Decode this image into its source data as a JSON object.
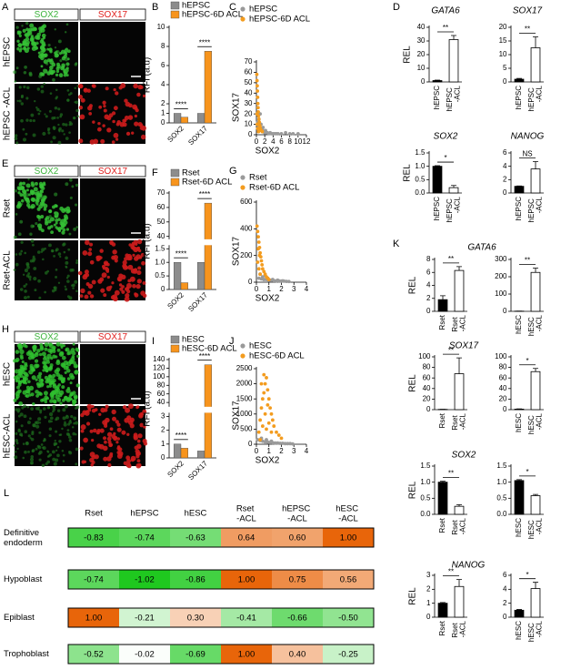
{
  "microscopy": [
    {
      "panel": "A",
      "columns": [
        "SOX2",
        "SOX17"
      ],
      "column_colors": [
        "#3cb43c",
        "#e0201e"
      ],
      "rows": [
        "hEPSC",
        "hEPSC -ACL"
      ]
    },
    {
      "panel": "E",
      "columns": [
        "SOX2",
        "SOX17"
      ],
      "column_colors": [
        "#3cb43c",
        "#e0201e"
      ],
      "rows": [
        "Rset",
        "Rset-ACL"
      ]
    },
    {
      "panel": "H",
      "columns": [
        "SOX2",
        "SOX17"
      ],
      "column_colors": [
        "#3cb43c",
        "#e0201e"
      ],
      "rows": [
        "hESC",
        "hESC-ACL"
      ]
    }
  ],
  "chart_data": [
    {
      "type": "bar",
      "panel": "B",
      "ylabel": "RFI (a.u)",
      "categories": [
        "SOX2",
        "SOX17"
      ],
      "series": [
        {
          "name": "hEPSC",
          "color": "#8c8c8c",
          "values": [
            1.0,
            1.0
          ]
        },
        {
          "name": "hEPSC-6D ACL",
          "color": "#f7941d",
          "values": [
            0.6,
            7.5
          ]
        }
      ],
      "annotations": [
        "****",
        "****"
      ],
      "ylim": [
        0,
        10
      ],
      "yticks": [
        0,
        1,
        2,
        4,
        6,
        8,
        10
      ]
    },
    {
      "type": "scatter",
      "panel": "C",
      "xlabel": "SOX2",
      "ylabel": "SOX17",
      "series": [
        {
          "name": "hEPSC",
          "color": "#9a9a9a",
          "x": [
            0.3,
            0.5,
            0.8,
            1.0,
            1.2,
            1.5,
            1.8,
            2.0,
            2.3,
            2.6,
            3.0,
            3.3,
            3.6,
            4.0,
            4.4,
            4.8,
            5.2,
            6.0,
            7.0,
            8.0,
            8.8,
            10.0,
            0.6,
            1.1,
            1.6,
            2.2,
            0.9,
            1.4
          ],
          "values": [
            12,
            8,
            6,
            5,
            4,
            3,
            3,
            2,
            2,
            2,
            1,
            2,
            1,
            1,
            1,
            1,
            1,
            1,
            2,
            1,
            1,
            1,
            15,
            10,
            7,
            4,
            20,
            5
          ]
        },
        {
          "name": "hEPSC-6D ACL",
          "color": "#f39c1f",
          "x": [
            0.1,
            0.15,
            0.2,
            0.25,
            0.3,
            0.35,
            0.4,
            0.45,
            0.5,
            0.6,
            0.7,
            0.8,
            0.9,
            1.0,
            1.2,
            1.4,
            0.2,
            0.3,
            0.5,
            0.15
          ],
          "values": [
            58,
            52,
            47,
            42,
            36,
            30,
            26,
            22,
            18,
            15,
            12,
            9,
            7,
            5,
            4,
            3,
            10,
            6,
            3,
            20
          ]
        }
      ],
      "xlim": [
        0,
        12
      ],
      "xticks": [
        0,
        2,
        4,
        6,
        8,
        10,
        12
      ],
      "ylim": [
        0,
        70
      ],
      "yticks": [
        0,
        10,
        20,
        30,
        40,
        50,
        60,
        70
      ]
    },
    {
      "type": "bar",
      "panel": "F",
      "ylabel": "RFI (a.u)",
      "categories": [
        "SOX2",
        "SOX17"
      ],
      "series": [
        {
          "name": "Rset",
          "color": "#8c8c8c",
          "values": [
            1.0,
            1.0
          ]
        },
        {
          "name": "Rset-6D ACL",
          "color": "#f7941d",
          "values": [
            0.25,
            63
          ]
        }
      ],
      "annotations": [
        "****",
        "****"
      ],
      "ylim": [
        0,
        70
      ],
      "ybreak": [
        1.6,
        38
      ],
      "yticks": [
        0,
        0.5,
        {
          "value": 1,
          "label": "1.0"
        },
        1.5,
        40,
        50,
        60,
        70
      ]
    },
    {
      "type": "scatter",
      "panel": "G",
      "xlabel": "SOX2",
      "ylabel": "SOX17",
      "series": [
        {
          "name": "Rset",
          "color": "#9a9a9a",
          "x": [
            0.2,
            0.4,
            0.6,
            0.8,
            1.0,
            1.2,
            1.4,
            1.6,
            1.8,
            2.0,
            2.2,
            2.4,
            2.6,
            0.5,
            0.9,
            1.3,
            1.7,
            2.1,
            0.3,
            0.7
          ],
          "values": [
            30,
            25,
            20,
            20,
            15,
            15,
            12,
            10,
            10,
            8,
            8,
            6,
            5,
            40,
            30,
            20,
            15,
            10,
            60,
            50
          ]
        },
        {
          "name": "Rset-6D ACL",
          "color": "#f39c1f",
          "x": [
            0.05,
            0.1,
            0.15,
            0.2,
            0.25,
            0.3,
            0.35,
            0.4,
            0.45,
            0.5,
            0.6,
            0.7,
            0.8,
            0.9,
            1.0,
            0.1,
            0.2,
            0.3,
            0.15,
            0.25
          ],
          "values": [
            420,
            380,
            340,
            300,
            260,
            220,
            190,
            160,
            130,
            100,
            80,
            60,
            40,
            30,
            20,
            150,
            100,
            60,
            250,
            200
          ]
        }
      ],
      "xlim": [
        0,
        4
      ],
      "xticks": [
        0,
        1,
        2,
        3,
        4
      ],
      "ylim": [
        0,
        600
      ],
      "yticks": [
        0,
        200,
        400,
        600
      ]
    },
    {
      "type": "bar",
      "panel": "I",
      "ylabel": "RFI (a.u)",
      "categories": [
        "SOX2",
        "SOX17"
      ],
      "series": [
        {
          "name": "hESC",
          "color": "#8c8c8c",
          "values": [
            1.0,
            0.5
          ]
        },
        {
          "name": "hESC-6D ACL",
          "color": "#f7941d",
          "values": [
            0.7,
            128
          ]
        }
      ],
      "annotations": [
        "****",
        "****"
      ],
      "ylim": [
        0,
        140
      ],
      "ybreak": [
        3.2,
        30
      ],
      "yticks": [
        0,
        1,
        2,
        3,
        40,
        60,
        80,
        100,
        120,
        140
      ]
    },
    {
      "type": "scatter",
      "panel": "J",
      "xlabel": "SOX2",
      "ylabel": "SOX17",
      "series": [
        {
          "name": "hESC",
          "color": "#9a9a9a",
          "x": [
            0.1,
            0.3,
            0.5,
            0.7,
            0.9,
            1.1,
            1.3,
            1.5,
            1.7,
            1.9,
            2.1,
            2.3,
            2.5,
            2.7,
            2.9,
            0.4,
            0.8,
            1.2
          ],
          "values": [
            150,
            120,
            100,
            80,
            70,
            60,
            50,
            40,
            40,
            30,
            30,
            20,
            20,
            20,
            10,
            200,
            150,
            100
          ]
        },
        {
          "name": "hESC-6D ACL",
          "color": "#f39c1f",
          "x": [
            0.2,
            0.3,
            0.4,
            0.5,
            0.6,
            0.7,
            0.8,
            0.9,
            1.0,
            1.1,
            1.2,
            1.3,
            1.4,
            1.6,
            1.8,
            2.0,
            0.5,
            0.7,
            0.9,
            0.6,
            0.8,
            1.0,
            0.4,
            1.2,
            0.3
          ],
          "values": [
            400,
            800,
            1200,
            1500,
            1700,
            2000,
            2200,
            1800,
            1500,
            1200,
            1000,
            800,
            600,
            400,
            300,
            200,
            600,
            1000,
            1300,
            2300,
            500,
            700,
            2000,
            400,
            150
          ]
        }
      ],
      "xlim": [
        0,
        4
      ],
      "xticks": [
        0,
        1,
        2,
        3,
        4
      ],
      "ylim": [
        0,
        2500
      ],
      "yticks": [
        0,
        500,
        1000,
        1500,
        2000,
        2500
      ]
    },
    {
      "type": "bar",
      "panel": "D",
      "title": "GATA6",
      "ylabel": "REL",
      "categories": [
        "hEPSC",
        "hEPSC -ACL"
      ],
      "values": [
        1,
        31
      ],
      "errors": [
        0.3,
        3
      ],
      "colors": [
        "#000000",
        "#ffffff"
      ],
      "significance": "**",
      "ylim": [
        0,
        40
      ],
      "yticks": [
        0,
        10,
        20,
        30,
        40
      ]
    },
    {
      "type": "bar",
      "title": "SOX17",
      "categories": [
        "hEPSC",
        "hEPSC -ACL"
      ],
      "values": [
        1,
        12.5
      ],
      "errors": [
        0.3,
        4
      ],
      "colors": [
        "#000000",
        "#ffffff"
      ],
      "significance": "**",
      "ylim": [
        0,
        20
      ],
      "yticks": [
        0,
        5,
        10,
        15,
        20
      ]
    },
    {
      "type": "bar",
      "title": "SOX2",
      "ylabel": "REL",
      "categories": [
        "hEPSC",
        "hEPSC -ACL"
      ],
      "values": [
        1,
        0.2
      ],
      "errors": [
        0.02,
        0.08
      ],
      "colors": [
        "#000000",
        "#ffffff"
      ],
      "significance": "*",
      "ylim": [
        0,
        1.5
      ],
      "yticks": [
        {
          "value": 0,
          "label": "0.0"
        },
        0.5,
        {
          "value": 1,
          "label": "1.0"
        },
        1.5
      ]
    },
    {
      "type": "bar",
      "title": "NANOG",
      "categories": [
        "hEPSC",
        "hEPSC -ACL"
      ],
      "values": [
        1,
        3.6
      ],
      "errors": [
        0.05,
        1.1
      ],
      "colors": [
        "#000000",
        "#ffffff"
      ],
      "significance": "NS",
      "ylim": [
        0,
        6
      ],
      "yticks": [
        0,
        2,
        4,
        6
      ]
    },
    {
      "type": "bar",
      "panel": "K",
      "title": "GATA6",
      "ylabel": "REL",
      "categories": [
        "Rset",
        "Rset -ACL"
      ],
      "values": [
        1.8,
        6.3
      ],
      "errors": [
        0.6,
        0.6
      ],
      "colors": [
        "#000000",
        "#ffffff"
      ],
      "significance": "**",
      "ylim": [
        0,
        8
      ],
      "yticks": [
        0,
        2,
        4,
        6,
        8
      ]
    },
    {
      "type": "bar",
      "categories": [
        "hESC",
        "hESC -ACL"
      ],
      "values": [
        1,
        225
      ],
      "errors": [
        0.2,
        25
      ],
      "colors": [
        "#000000",
        "#ffffff"
      ],
      "significance": "**",
      "ylim": [
        0,
        300
      ],
      "yticks": [
        0,
        100,
        200,
        300
      ]
    },
    {
      "type": "bar",
      "title": "SOX17",
      "ylabel": "REL",
      "categories": [
        "Rset",
        "Rset -ACL"
      ],
      "values": [
        0.5,
        68
      ],
      "errors": [
        0.2,
        30
      ],
      "colors": [
        "#000000",
        "#ffffff"
      ],
      "significance": "**",
      "ylim": [
        0,
        100
      ],
      "yticks": [
        0,
        20,
        40,
        60,
        80,
        100
      ]
    },
    {
      "type": "bar",
      "categories": [
        "hESC",
        "hESC -ACL"
      ],
      "values": [
        1,
        72
      ],
      "errors": [
        0.5,
        6
      ],
      "colors": [
        "#000000",
        "#ffffff"
      ],
      "significance": "*",
      "ylim": [
        0,
        100
      ],
      "yticks": [
        0,
        20,
        40,
        60,
        80,
        100
      ]
    },
    {
      "type": "bar",
      "title": "SOX2",
      "ylabel": "REL",
      "categories": [
        "Rset",
        "Rset -ACL"
      ],
      "values": [
        1.0,
        0.25
      ],
      "errors": [
        0.03,
        0.05
      ],
      "colors": [
        "#000000",
        "#ffffff"
      ],
      "significance": "**",
      "ylim": [
        0,
        1.5
      ],
      "yticks": [
        {
          "value": 0,
          "label": "0.0"
        },
        0.5,
        {
          "value": 1,
          "label": "1.0"
        },
        1.5
      ]
    },
    {
      "type": "bar",
      "categories": [
        "hESC",
        "hESC -ACL"
      ],
      "values": [
        1.05,
        0.58
      ],
      "errors": [
        0.03,
        0.04
      ],
      "colors": [
        "#000000",
        "#ffffff"
      ],
      "significance": "*",
      "ylim": [
        0,
        1.5
      ],
      "yticks": [
        {
          "value": 0,
          "label": "0.0"
        },
        0.5,
        {
          "value": 1,
          "label": "1.0"
        },
        1.5
      ]
    },
    {
      "type": "bar",
      "title": "NANOG",
      "ylabel": "REL",
      "categories": [
        "Rset",
        "Rset -ACL"
      ],
      "values": [
        1,
        2.2
      ],
      "errors": [
        0.05,
        0.5
      ],
      "colors": [
        "#000000",
        "#ffffff"
      ],
      "significance": "**",
      "ylim": [
        0,
        3
      ],
      "yticks": [
        0,
        1,
        2,
        3
      ]
    },
    {
      "type": "bar",
      "categories": [
        "hESC",
        "hESC -ACL"
      ],
      "values": [
        1,
        4.1
      ],
      "errors": [
        0.1,
        0.9
      ],
      "colors": [
        "#000000",
        "#ffffff"
      ],
      "significance": "*",
      "ylim": [
        0,
        6
      ],
      "yticks": [
        0,
        2,
        4,
        6
      ]
    }
  ],
  "heatmap": {
    "panel": "L",
    "columns": [
      "Rset",
      "hEPSC",
      "hESC",
      "Rset -ACL",
      "hEPSC -ACL",
      "hESC -ACL"
    ],
    "rows": [
      "Definitive endoderm",
      "Hypoblast",
      "Epiblast",
      "Trophoblast"
    ],
    "values": [
      [
        -0.83,
        -0.74,
        -0.63,
        0.64,
        0.6,
        1.0
      ],
      [
        -0.74,
        -1.02,
        -0.86,
        1.0,
        0.75,
        0.56
      ],
      [
        1.0,
        -0.21,
        0.3,
        -0.41,
        -0.66,
        -0.5
      ],
      [
        -0.52,
        -0.02,
        -0.69,
        1.0,
        0.4,
        -0.25
      ]
    ],
    "value_labels": [
      [
        "-0.83",
        "-0.74",
        "-0.63",
        "0.64",
        "0.60",
        "1.00"
      ],
      [
        "-0.74",
        "-1.02",
        "-0.86",
        "1.00",
        "0.75",
        "0.56"
      ],
      [
        "1.00",
        "-0.21",
        "0.30",
        "-0.41",
        "-0.66",
        "-0.50"
      ],
      [
        "-0.52",
        "-0.02",
        "-0.69",
        "1.00",
        "0.40",
        "-0.25"
      ]
    ],
    "colors": {
      "negative": "#1fc81f",
      "positive": "#e8650a"
    }
  }
}
